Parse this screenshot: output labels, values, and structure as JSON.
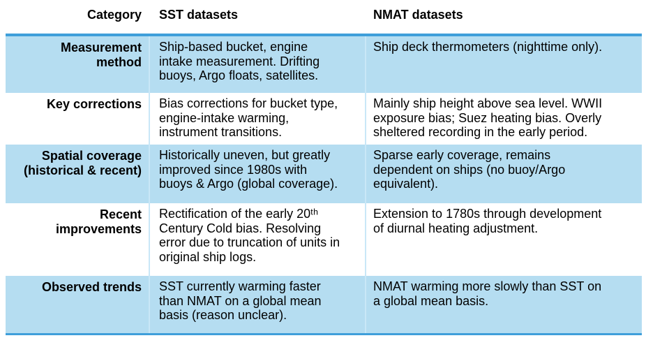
{
  "colors": {
    "accent_border": "#3f9fda",
    "row_band": "#b5ddf1",
    "grid_line": "#c9e7f7",
    "text": "#000000"
  },
  "header": {
    "category": "Category",
    "sst": "SST datasets",
    "nmat": "NMAT datasets"
  },
  "table": {
    "rows": [
      {
        "category": "Measurement\nmethod",
        "sst": "Ship-based bucket, engine\nintake measurement. Drifting\nbuoys, Argo floats, satellites.",
        "nmat": "Ship deck thermometers (nighttime only)."
      },
      {
        "category": "Key corrections",
        "sst": "Bias corrections for bucket type,\nengine-intake warming,\ninstrument transitions.",
        "nmat": "Mainly ship height above sea level. WWII\nexposure bias; Suez heating bias. Overly\nsheltered recording in the early period."
      },
      {
        "category": "Spatial coverage\n(historical & recent)",
        "sst": "Historically uneven, but greatly\nimproved since 1980s with\nbuoys & Argo (global coverage).",
        "nmat": "Sparse early coverage, remains\ndependent on ships (no buoy/Argo\nequivalent)."
      },
      {
        "category": "Recent\nimprovements",
        "sst": "Rectification of the early 20ᵗʰ\nCentury Cold bias. Resolving\nerror due to truncation of units in\noriginal ship logs.",
        "nmat": "Extension to 1780s through development\nof diurnal heating adjustment."
      },
      {
        "category": "Observed trends",
        "sst": "SST currently warming faster\nthan NMAT on a global mean\nbasis (reason unclear).",
        "nmat": "NMAT warming more slowly than SST on\na global mean basis."
      }
    ]
  }
}
